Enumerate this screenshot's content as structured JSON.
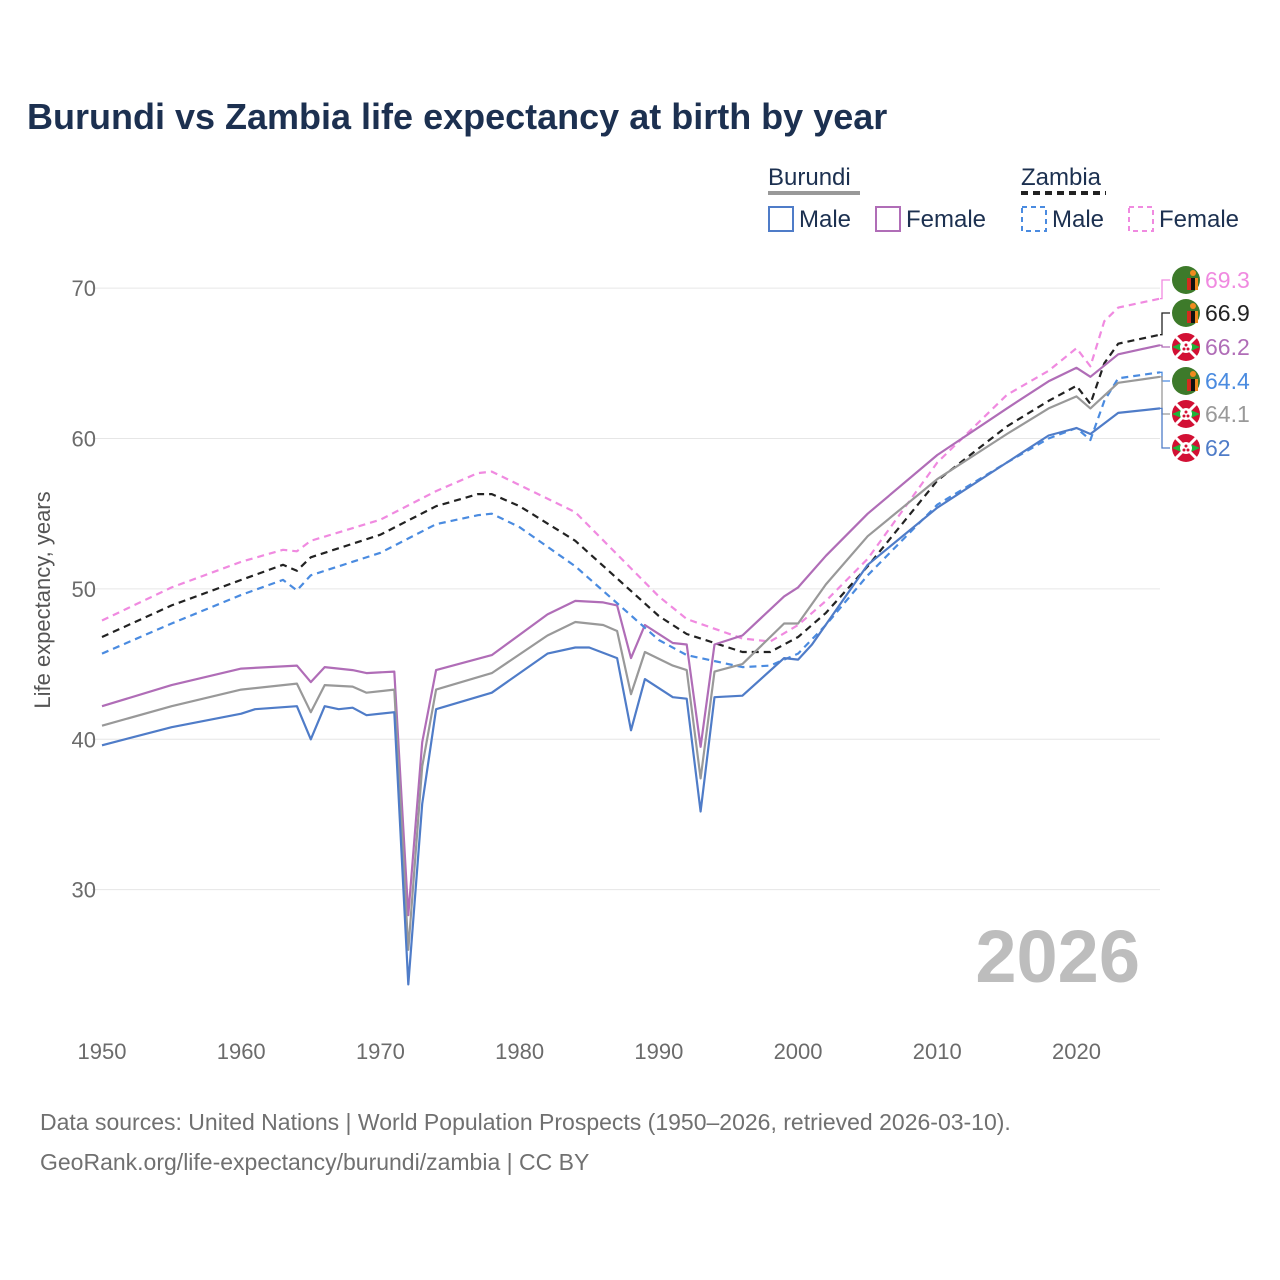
{
  "title": "Burundi vs Zambia life expectancy at birth by year",
  "chart_data": {
    "type": "line",
    "title": "Burundi vs Zambia life expectancy at birth by year",
    "xlabel": "",
    "ylabel": "Life expectancy, years",
    "xlim": [
      1950,
      2026
    ],
    "ylim": [
      22,
      72
    ],
    "x_ticks": [
      1950,
      1960,
      1970,
      1980,
      1990,
      2000,
      2010,
      2020
    ],
    "y_ticks": [
      30,
      40,
      50,
      60,
      70
    ],
    "grid": true,
    "current_year": "2026",
    "legend": {
      "groups": [
        {
          "country": "Burundi",
          "items": [
            "Male",
            "Female"
          ]
        },
        {
          "country": "Zambia",
          "items": [
            "Male",
            "Female"
          ]
        }
      ]
    },
    "series": [
      {
        "id": "zambia-female",
        "name": "Zambia Female",
        "color": "#f08ae0",
        "dash": true,
        "end_label": "69.3",
        "points": [
          [
            1950,
            47.9
          ],
          [
            1955,
            50.1
          ],
          [
            1960,
            51.8
          ],
          [
            1963,
            52.6
          ],
          [
            1964,
            52.5
          ],
          [
            1965,
            53.2
          ],
          [
            1970,
            54.6
          ],
          [
            1974,
            56.5
          ],
          [
            1977,
            57.7
          ],
          [
            1978,
            57.8
          ],
          [
            1980,
            56.9
          ],
          [
            1984,
            55.1
          ],
          [
            1990,
            49.5
          ],
          [
            1992,
            48.0
          ],
          [
            1996,
            46.7
          ],
          [
            1998,
            46.5
          ],
          [
            2000,
            47.6
          ],
          [
            2002,
            49.2
          ],
          [
            2005,
            52.0
          ],
          [
            2010,
            58.4
          ],
          [
            2015,
            62.9
          ],
          [
            2018,
            64.5
          ],
          [
            2020,
            66.0
          ],
          [
            2021,
            64.8
          ],
          [
            2022,
            67.8
          ],
          [
            2023,
            68.7
          ],
          [
            2026,
            69.3
          ]
        ]
      },
      {
        "id": "zambia-total",
        "name": "Zambia",
        "color": "#222222",
        "dash": true,
        "end_label": "66.9",
        "points": [
          [
            1950,
            46.8
          ],
          [
            1955,
            48.9
          ],
          [
            1960,
            50.6
          ],
          [
            1963,
            51.6
          ],
          [
            1964,
            51.2
          ],
          [
            1965,
            52.1
          ],
          [
            1970,
            53.6
          ],
          [
            1974,
            55.5
          ],
          [
            1977,
            56.3
          ],
          [
            1978,
            56.3
          ],
          [
            1980,
            55.5
          ],
          [
            1984,
            53.2
          ],
          [
            1990,
            48.2
          ],
          [
            1992,
            47.0
          ],
          [
            1996,
            45.8
          ],
          [
            1998,
            45.8
          ],
          [
            2000,
            46.8
          ],
          [
            2002,
            48.4
          ],
          [
            2005,
            51.5
          ],
          [
            2010,
            57.2
          ],
          [
            2015,
            60.8
          ],
          [
            2018,
            62.5
          ],
          [
            2020,
            63.5
          ],
          [
            2021,
            62.3
          ],
          [
            2022,
            65.0
          ],
          [
            2023,
            66.3
          ],
          [
            2026,
            66.9
          ]
        ]
      },
      {
        "id": "burundi-female",
        "name": "Burundi Female",
        "color": "#b06db7",
        "dash": false,
        "end_label": "66.2",
        "points": [
          [
            1950,
            42.2
          ],
          [
            1955,
            43.6
          ],
          [
            1960,
            44.7
          ],
          [
            1964,
            44.9
          ],
          [
            1965,
            43.8
          ],
          [
            1966,
            44.8
          ],
          [
            1968,
            44.6
          ],
          [
            1969,
            44.4
          ],
          [
            1971,
            44.5
          ],
          [
            1972,
            28.3
          ],
          [
            1973,
            39.8
          ],
          [
            1974,
            44.6
          ],
          [
            1978,
            45.6
          ],
          [
            1982,
            48.3
          ],
          [
            1984,
            49.2
          ],
          [
            1986,
            49.1
          ],
          [
            1987,
            48.9
          ],
          [
            1988,
            45.4
          ],
          [
            1989,
            47.6
          ],
          [
            1991,
            46.4
          ],
          [
            1992,
            46.3
          ],
          [
            1993,
            39.5
          ],
          [
            1994,
            46.3
          ],
          [
            1996,
            46.9
          ],
          [
            1999,
            49.5
          ],
          [
            2000,
            50.1
          ],
          [
            2002,
            52.2
          ],
          [
            2005,
            55.0
          ],
          [
            2010,
            58.9
          ],
          [
            2015,
            62.0
          ],
          [
            2018,
            63.8
          ],
          [
            2020,
            64.7
          ],
          [
            2021,
            64.1
          ],
          [
            2023,
            65.6
          ],
          [
            2026,
            66.2
          ]
        ]
      },
      {
        "id": "zambia-male",
        "name": "Zambia Male",
        "color": "#4a8be0",
        "dash": true,
        "end_label": "64.4",
        "points": [
          [
            1950,
            45.7
          ],
          [
            1955,
            47.7
          ],
          [
            1960,
            49.6
          ],
          [
            1963,
            50.6
          ],
          [
            1964,
            49.9
          ],
          [
            1965,
            50.9
          ],
          [
            1970,
            52.4
          ],
          [
            1974,
            54.3
          ],
          [
            1977,
            54.9
          ],
          [
            1978,
            55.0
          ],
          [
            1980,
            54.1
          ],
          [
            1984,
            51.5
          ],
          [
            1990,
            46.6
          ],
          [
            1992,
            45.6
          ],
          [
            1996,
            44.8
          ],
          [
            1998,
            44.9
          ],
          [
            2000,
            45.7
          ],
          [
            2002,
            47.6
          ],
          [
            2005,
            50.9
          ],
          [
            2010,
            55.6
          ],
          [
            2015,
            58.4
          ],
          [
            2018,
            60.0
          ],
          [
            2020,
            60.7
          ],
          [
            2021,
            59.9
          ],
          [
            2022,
            62.5
          ],
          [
            2023,
            64.0
          ],
          [
            2026,
            64.4
          ]
        ]
      },
      {
        "id": "burundi-total",
        "name": "Burundi",
        "color": "#999999",
        "dash": false,
        "end_label": "64.1",
        "points": [
          [
            1950,
            40.9
          ],
          [
            1955,
            42.2
          ],
          [
            1960,
            43.3
          ],
          [
            1964,
            43.7
          ],
          [
            1965,
            41.8
          ],
          [
            1966,
            43.6
          ],
          [
            1968,
            43.5
          ],
          [
            1969,
            43.1
          ],
          [
            1971,
            43.3
          ],
          [
            1972,
            26.0
          ],
          [
            1973,
            38.2
          ],
          [
            1974,
            43.3
          ],
          [
            1978,
            44.4
          ],
          [
            1982,
            46.9
          ],
          [
            1984,
            47.8
          ],
          [
            1986,
            47.6
          ],
          [
            1987,
            47.2
          ],
          [
            1988,
            43.0
          ],
          [
            1989,
            45.8
          ],
          [
            1991,
            44.9
          ],
          [
            1992,
            44.6
          ],
          [
            1993,
            37.4
          ],
          [
            1994,
            44.5
          ],
          [
            1996,
            45.0
          ],
          [
            1999,
            47.7
          ],
          [
            2000,
            47.7
          ],
          [
            2002,
            50.3
          ],
          [
            2005,
            53.5
          ],
          [
            2010,
            57.3
          ],
          [
            2015,
            60.3
          ],
          [
            2018,
            62.0
          ],
          [
            2020,
            62.8
          ],
          [
            2021,
            62.0
          ],
          [
            2023,
            63.7
          ],
          [
            2026,
            64.1
          ]
        ]
      },
      {
        "id": "burundi-male",
        "name": "Burundi Male",
        "color": "#4f7cc8",
        "dash": false,
        "end_label": "62",
        "points": [
          [
            1950,
            39.6
          ],
          [
            1955,
            40.8
          ],
          [
            1960,
            41.7
          ],
          [
            1961,
            42.0
          ],
          [
            1964,
            42.2
          ],
          [
            1965,
            40.0
          ],
          [
            1966,
            42.2
          ],
          [
            1967,
            42.0
          ],
          [
            1968,
            42.1
          ],
          [
            1969,
            41.6
          ],
          [
            1971,
            41.8
          ],
          [
            1972,
            23.7
          ],
          [
            1973,
            35.7
          ],
          [
            1974,
            42.0
          ],
          [
            1978,
            43.1
          ],
          [
            1982,
            45.7
          ],
          [
            1984,
            46.1
          ],
          [
            1985,
            46.1
          ],
          [
            1987,
            45.4
          ],
          [
            1988,
            40.6
          ],
          [
            1989,
            44.0
          ],
          [
            1991,
            42.8
          ],
          [
            1992,
            42.7
          ],
          [
            1993,
            35.2
          ],
          [
            1994,
            42.8
          ],
          [
            1996,
            42.9
          ],
          [
            1999,
            45.4
          ],
          [
            2000,
            45.3
          ],
          [
            2001,
            46.3
          ],
          [
            2005,
            51.6
          ],
          [
            2010,
            55.4
          ],
          [
            2015,
            58.4
          ],
          [
            2018,
            60.2
          ],
          [
            2020,
            60.7
          ],
          [
            2021,
            60.3
          ],
          [
            2023,
            61.7
          ],
          [
            2026,
            62.0
          ]
        ]
      }
    ]
  },
  "sources": {
    "line1": "Data sources: United Nations | World Population Prospects (1950–2026, retrieved 2026-03-10).",
    "line2": "GeoRank.org/life-expectancy/burundi/zambia | CC BY"
  }
}
